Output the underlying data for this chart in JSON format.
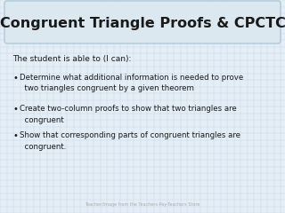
{
  "title": "Congruent Triangle Proofs & CPCTC",
  "title_fontsize": 11.5,
  "title_bg_color": "#dce8f0",
  "title_border_color": "#b0c8d8",
  "body_bg_color": "#e4eef6",
  "grid_color": "#c8d8e8",
  "intro_text": "The student is able to (I can):",
  "intro_fontsize": 6.5,
  "bullet_points": [
    "Determine what additional information is needed to prove\n  two triangles congruent by a given theorem",
    "Create two-column proofs to show that two triangles are\n  congruent",
    "Show that corresponding parts of congruent triangles are\n  congruent."
  ],
  "bullet_fontsize": 6.2,
  "footer_text": "Teacher/Image from the Teachers-Pay-Teachers Store",
  "footer_fontsize": 3.5,
  "text_color": "#1a1a1a",
  "footer_color": "#aaaaaa"
}
